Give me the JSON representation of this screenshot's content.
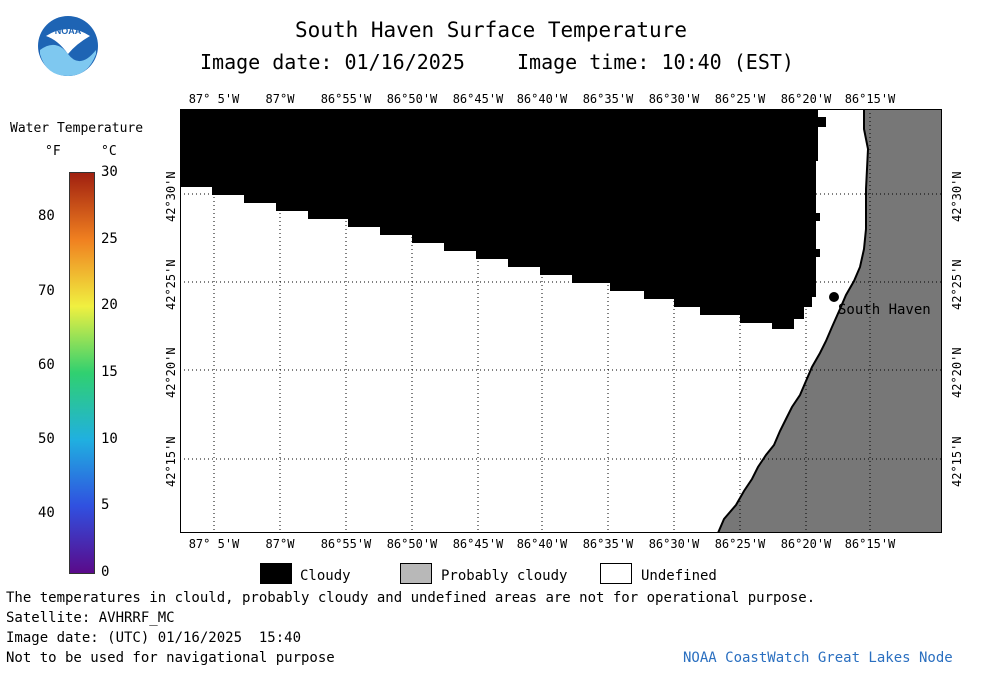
{
  "header": {
    "title": "South Haven Surface Temperature",
    "date_line": "Image date: 01/16/2025",
    "time_line": "Image time: 10:40 (EST)"
  },
  "logo": {
    "text": "NOAA",
    "icon": "noaa-logo"
  },
  "scale": {
    "title": "Water Temperature",
    "unit_f": "°F",
    "unit_c": "°C",
    "f_ticks": [
      "80",
      "70",
      "60",
      "50",
      "40"
    ],
    "c_ticks": [
      "30",
      "25",
      "20",
      "15",
      "10",
      "5",
      "0"
    ],
    "colormap": [
      "#5a0a8a",
      "#3050e0",
      "#20b0e0",
      "#30d070",
      "#f0f040",
      "#f08020",
      "#a02010"
    ]
  },
  "map": {
    "lon_labels": [
      "87° 5'W",
      "87°W",
      "86°55'W",
      "86°50'W",
      "86°45'W",
      "86°40'W",
      "86°35'W",
      "86°30'W",
      "86°25'W",
      "86°20'W",
      "86°15'W"
    ],
    "lat_labels": [
      "42°30'N",
      "42°25'N",
      "42°20'N",
      "42°15'N"
    ],
    "place_label": "South Haven",
    "colors": {
      "cloud": "#000000",
      "land": "#777777",
      "undefined": "#ffffff"
    }
  },
  "legend": {
    "cloudy": "Cloudy",
    "probably_cloudy": "Probably cloudy",
    "undefined": "Undefined"
  },
  "footer": {
    "line1": "The temperatures in clould, probably cloudy and undefined areas are not for operational purpose.",
    "line2": "Satellite: AVHRRF_MC",
    "line3": "Image date: (UTC) 01/16/2025  15:40",
    "line4": "Not to be used for navigational purpose",
    "credit": "NOAA CoastWatch Great Lakes Node"
  }
}
